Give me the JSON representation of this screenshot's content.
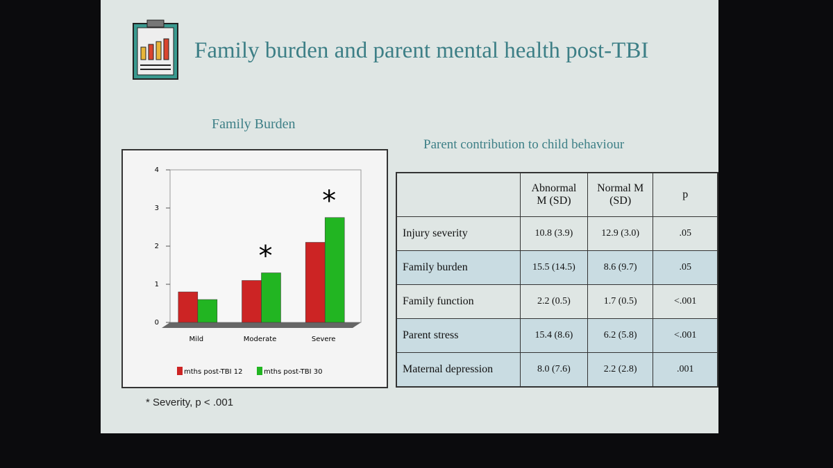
{
  "slide_title": "Family burden and parent mental health post-TBI",
  "chart_data": {
    "type": "bar",
    "title": "Family Burden",
    "categories": [
      "Mild",
      "Moderate",
      "Severe"
    ],
    "series": [
      {
        "name": "mths post-TBI 12",
        "color": "#cc2424",
        "values": [
          0.8,
          1.1,
          2.1
        ]
      },
      {
        "name": "mths post-TBI 30",
        "color": "#22b522",
        "values": [
          0.6,
          1.3,
          2.75
        ]
      }
    ],
    "annotations": [
      null,
      "*",
      "*"
    ],
    "ylim": [
      0,
      4
    ],
    "yticks": [
      0,
      1,
      2,
      3,
      4
    ]
  },
  "footnote": "* Severity, p < .001",
  "table": {
    "title": "Parent contribution to child behaviour",
    "columns": [
      "Abnormal M (SD)",
      "Normal M (SD)",
      "p"
    ],
    "rows": [
      [
        "Injury severity",
        "10.8 (3.9)",
        "12.9 (3.0)",
        ".05"
      ],
      [
        "Family burden",
        "15.5 (14.5)",
        "8.6 (9.7)",
        ".05"
      ],
      [
        "Family function",
        "2.2 (0.5)",
        "1.7 (0.5)",
        "<.001"
      ],
      [
        "Parent stress",
        "15.4 (8.6)",
        "6.2 (5.8)",
        "<.001"
      ],
      [
        "Maternal depression",
        "8.0 (7.6)",
        "2.2 (2.8)",
        ".001"
      ]
    ]
  }
}
